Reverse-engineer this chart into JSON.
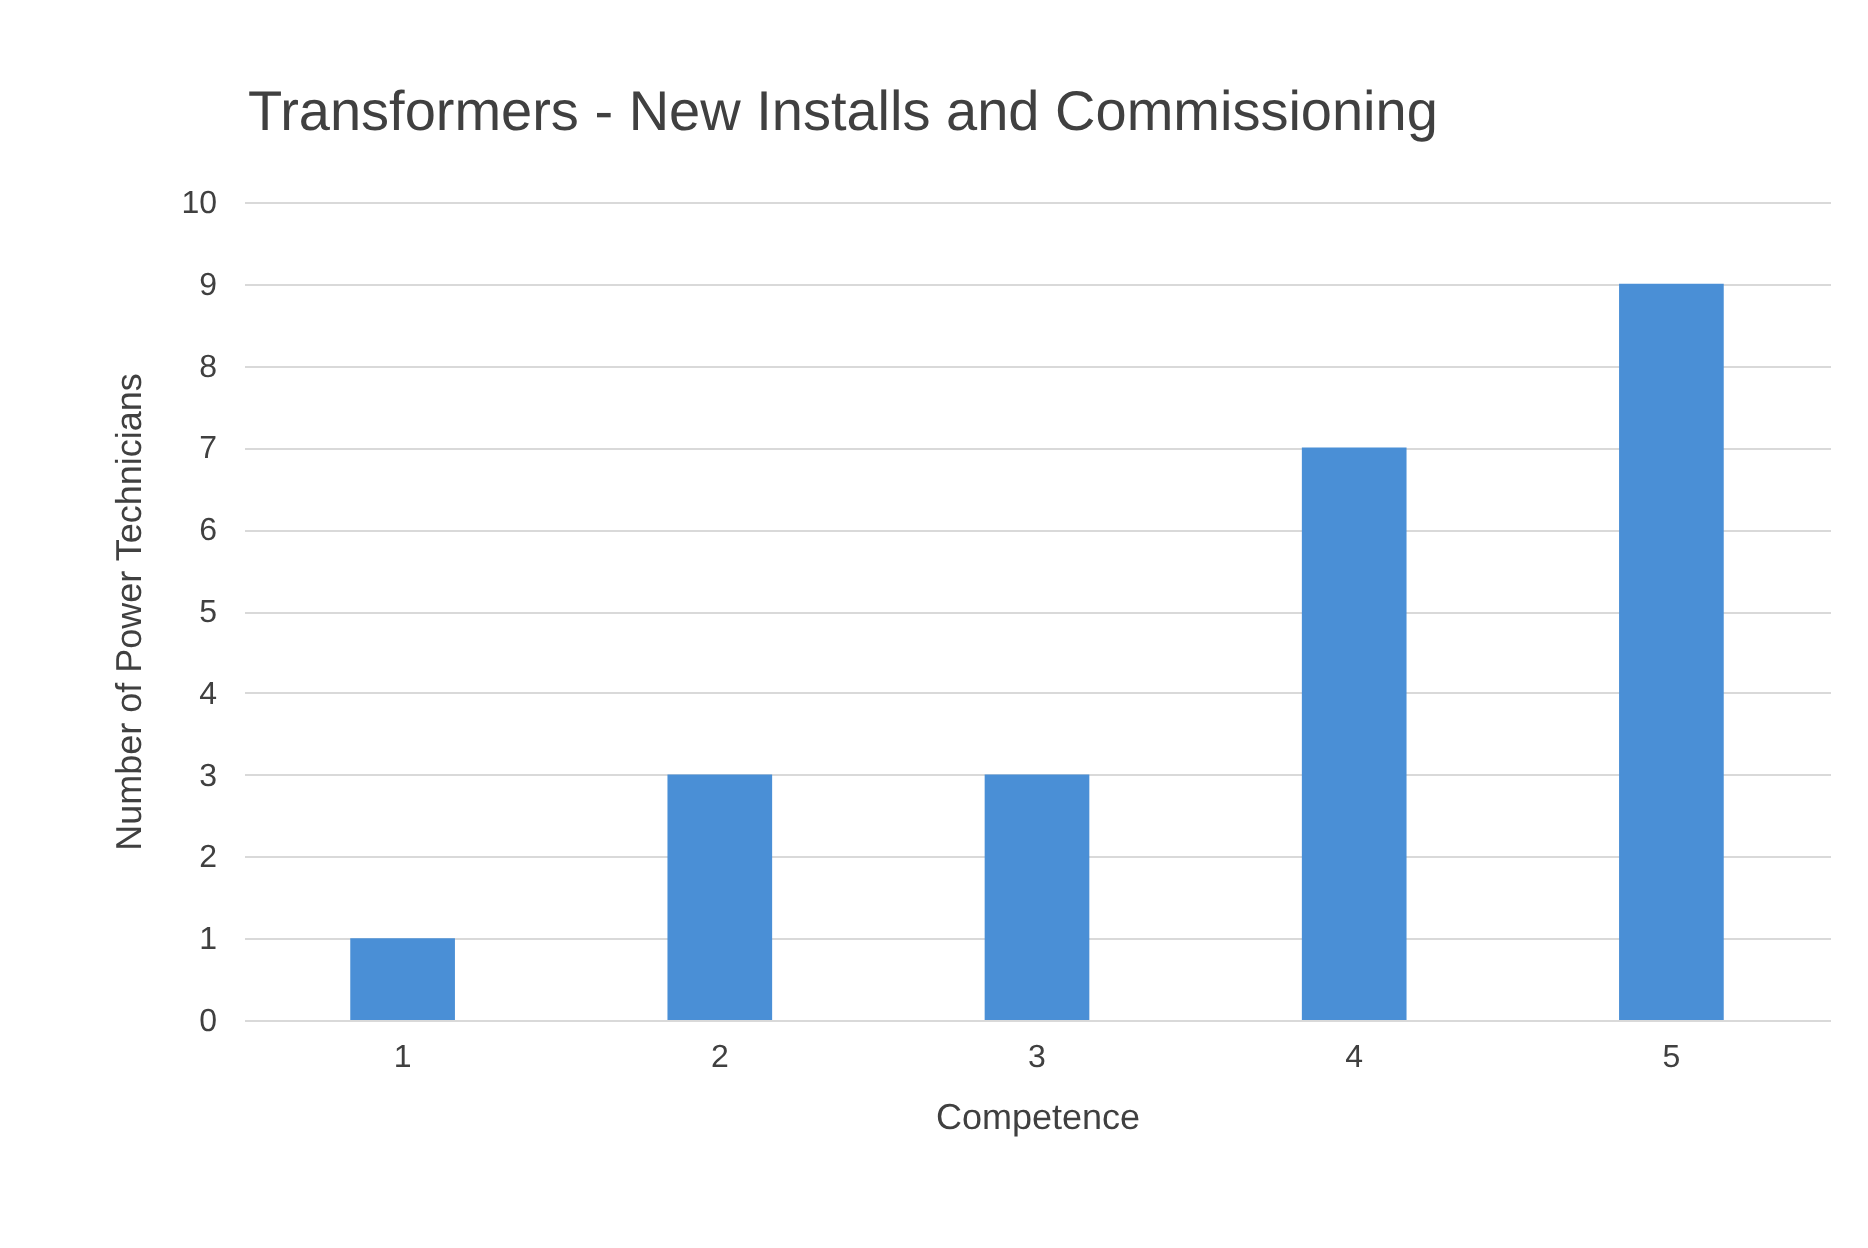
{
  "chart_data": {
    "type": "bar",
    "title": "Transformers - New Installs and Commissioning",
    "xlabel": "Competence",
    "ylabel": "Number of Power Technicians",
    "categories": [
      "1",
      "2",
      "3",
      "4",
      "5"
    ],
    "series": [
      {
        "color": "#4a8fd6",
        "values": [
          1,
          3,
          3,
          7,
          9
        ]
      }
    ],
    "ylim": [
      0,
      10
    ],
    "yticks": [
      0,
      1,
      2,
      3,
      4,
      5,
      6,
      7,
      8,
      9,
      10
    ],
    "grid": "y",
    "legend": false
  }
}
